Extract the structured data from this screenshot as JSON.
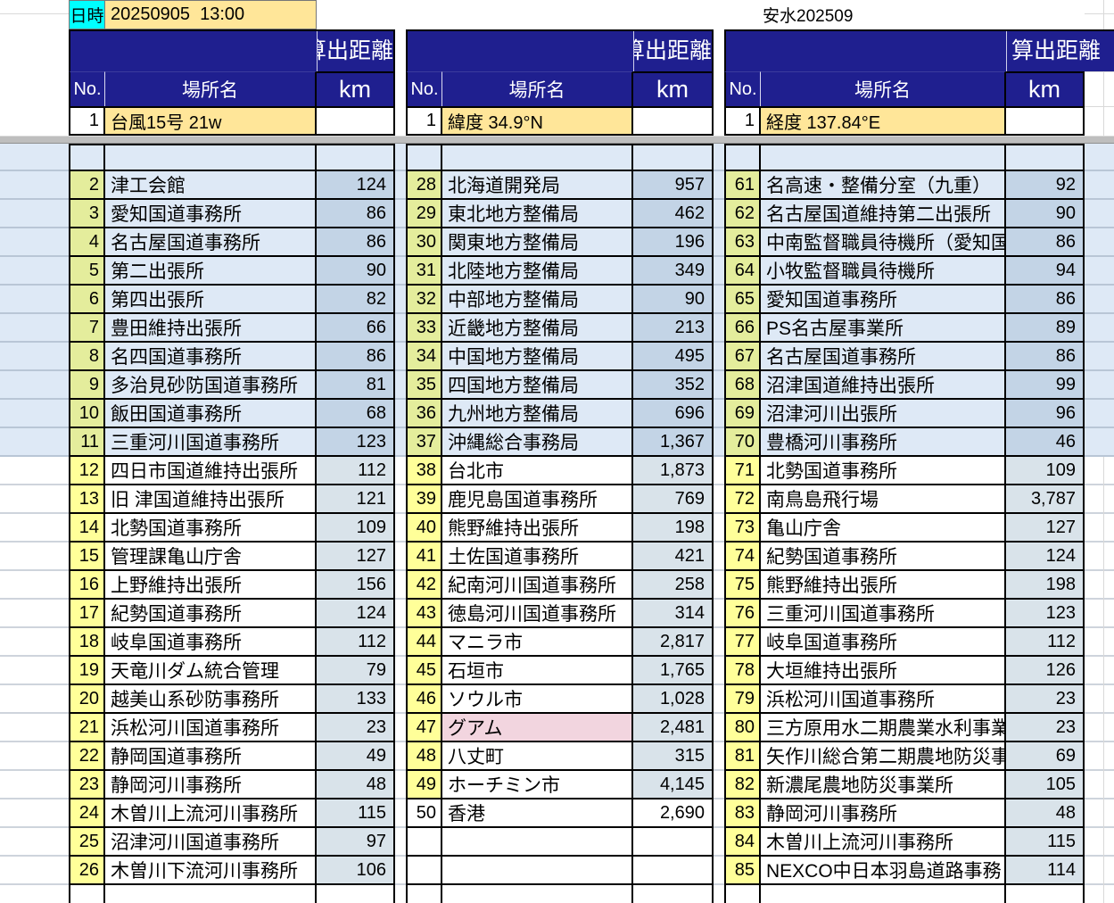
{
  "meta": {
    "datetime_label": "日時",
    "datetime_value": "20250905  13:00",
    "doc_ref": "安水202509"
  },
  "header": {
    "distance_title": "算出距離",
    "no_label": "No.",
    "place_label": "場所名",
    "unit_label": "km"
  },
  "groups": [
    {
      "pinned_row": {
        "no": "1",
        "name": "台風15号 21w"
      },
      "rows": [
        {
          "no": "2",
          "name": "津工会館",
          "km": "124"
        },
        {
          "no": "3",
          "name": "愛知国道事務所",
          "km": "86"
        },
        {
          "no": "4",
          "name": "名古屋国道事務所",
          "km": "86"
        },
        {
          "no": "5",
          "name": "第二出張所",
          "km": "90"
        },
        {
          "no": "6",
          "name": "第四出張所",
          "km": "82"
        },
        {
          "no": "7",
          "name": "豊田維持出張所",
          "km": "66"
        },
        {
          "no": "8",
          "name": "名四国道事務所",
          "km": "86"
        },
        {
          "no": "9",
          "name": "多治見砂防国道事務所",
          "km": "81"
        },
        {
          "no": "10",
          "name": "飯田国道事務所",
          "km": "68"
        },
        {
          "no": "11",
          "name": "三重河川国道事務所",
          "km": "123"
        },
        {
          "no": "12",
          "name": "四日市国道維持出張所",
          "km": "112"
        },
        {
          "no": "13",
          "name": "旧 津国道維持出張所",
          "km": "121"
        },
        {
          "no": "14",
          "name": "北勢国道事務所",
          "km": "109"
        },
        {
          "no": "15",
          "name": "管理課亀山庁舎",
          "km": "127"
        },
        {
          "no": "16",
          "name": "上野維持出張所",
          "km": "156"
        },
        {
          "no": "17",
          "name": "紀勢国道事務所",
          "km": "124"
        },
        {
          "no": "18",
          "name": "岐阜国道事務所",
          "km": "112"
        },
        {
          "no": "19",
          "name": "天竜川ダム統合管理",
          "km": "79"
        },
        {
          "no": "20",
          "name": "越美山系砂防事務所",
          "km": "133"
        },
        {
          "no": "21",
          "name": "浜松河川国道事務所",
          "km": "23"
        },
        {
          "no": "22",
          "name": "静岡国道事務所",
          "km": "49"
        },
        {
          "no": "23",
          "name": "静岡河川事務所",
          "km": "48"
        },
        {
          "no": "24",
          "name": "木曽川上流河川事務所",
          "km": "115"
        },
        {
          "no": "25",
          "name": "沼津河川国道事務所",
          "km": "97"
        },
        {
          "no": "26",
          "name": "木曽川下流河川事務所",
          "km": "106"
        }
      ]
    },
    {
      "pinned_row": {
        "no": "1",
        "name": "緯度 34.9°N"
      },
      "rows": [
        {
          "no": "28",
          "name": "北海道開発局",
          "km": "957"
        },
        {
          "no": "29",
          "name": "東北地方整備局",
          "km": "462"
        },
        {
          "no": "30",
          "name": "関東地方整備局",
          "km": "196"
        },
        {
          "no": "31",
          "name": "北陸地方整備局",
          "km": "349"
        },
        {
          "no": "32",
          "name": "中部地方整備局",
          "km": "90"
        },
        {
          "no": "33",
          "name": "近畿地方整備局",
          "km": "213"
        },
        {
          "no": "34",
          "name": "中国地方整備局",
          "km": "495"
        },
        {
          "no": "35",
          "name": "四国地方整備局",
          "km": "352"
        },
        {
          "no": "36",
          "name": "九州地方整備局",
          "km": "696"
        },
        {
          "no": "37",
          "name": "沖縄総合事務局",
          "km": "1,367"
        },
        {
          "no": "38",
          "name": "台北市",
          "km": "1,873"
        },
        {
          "no": "39",
          "name": "鹿児島国道事務所",
          "km": "769"
        },
        {
          "no": "40",
          "name": "熊野維持出張所",
          "km": "198"
        },
        {
          "no": "41",
          "name": "土佐国道事務所",
          "km": "421"
        },
        {
          "no": "42",
          "name": "紀南河川国道事務所",
          "km": "258"
        },
        {
          "no": "43",
          "name": "徳島河川国道事務所",
          "km": "314"
        },
        {
          "no": "44",
          "name": "マニラ市",
          "km": "2,817"
        },
        {
          "no": "45",
          "name": "石垣市",
          "km": "1,765"
        },
        {
          "no": "46",
          "name": "ソウル市",
          "km": "1,028"
        },
        {
          "no": "47",
          "name": "グアム",
          "km": "2,481",
          "name_bg": "pink"
        },
        {
          "no": "48",
          "name": "八丈町",
          "km": "315"
        },
        {
          "no": "49",
          "name": "ホーチミン市",
          "km": "4,145"
        },
        {
          "no": "50",
          "name": "香港",
          "km": "2,690",
          "no_bg": "plain",
          "km_bg": "plain"
        }
      ]
    },
    {
      "pinned_row": {
        "no": "1",
        "name": "経度 137.84°E"
      },
      "rows": [
        {
          "no": "61",
          "name": "名高速・整備分室（九重）",
          "km": "92"
        },
        {
          "no": "62",
          "name": "名古屋国道維持第二出張所",
          "km": "90"
        },
        {
          "no": "63",
          "name": "中南監督職員待機所（愛知国",
          "km": "86"
        },
        {
          "no": "64",
          "name": "小牧監督職員待機所",
          "km": "94"
        },
        {
          "no": "65",
          "name": "愛知国道事務所",
          "km": "86"
        },
        {
          "no": "66",
          "name": "PS名古屋事業所",
          "km": "89"
        },
        {
          "no": "67",
          "name": "名古屋国道事務所",
          "km": "86"
        },
        {
          "no": "68",
          "name": "沼津国道維持出張所",
          "km": "99"
        },
        {
          "no": "69",
          "name": "沼津河川出張所",
          "km": "96"
        },
        {
          "no": "70",
          "name": "豊橋河川事務所",
          "km": "46"
        },
        {
          "no": "71",
          "name": "北勢国道事務所",
          "km": "109"
        },
        {
          "no": "72",
          "name": "南鳥島飛行場",
          "km": "3,787"
        },
        {
          "no": "73",
          "name": "亀山庁舎",
          "km": "127"
        },
        {
          "no": "74",
          "name": "紀勢国道事務所",
          "km": "124"
        },
        {
          "no": "75",
          "name": "熊野維持出張所",
          "km": "198"
        },
        {
          "no": "76",
          "name": "三重河川国道事務所",
          "km": "123"
        },
        {
          "no": "77",
          "name": "岐阜国道事務所",
          "km": "112"
        },
        {
          "no": "78",
          "name": "大垣維持出張所",
          "km": "126"
        },
        {
          "no": "79",
          "name": "浜松河川国道事務所",
          "km": "23"
        },
        {
          "no": "80",
          "name": "三方原用水二期農業水利事業",
          "km": "23"
        },
        {
          "no": "81",
          "name": "矢作川総合第二期農地防災事",
          "km": "69"
        },
        {
          "no": "82",
          "name": "新濃尾農地防災事業所",
          "km": "105"
        },
        {
          "no": "83",
          "name": "静岡河川事務所",
          "km": "48"
        },
        {
          "no": "84",
          "name": "木曽川上流河川事務所",
          "km": "115"
        },
        {
          "no": "85",
          "name": "NEXCO中日本羽島道路事務",
          "km": "114"
        }
      ]
    }
  ],
  "colors": {
    "navy": "#1F1F8F",
    "cyan": "#00FFFF",
    "tan": "#FFE699",
    "yellow": "#FFFF99",
    "lime": "#E4ED9C",
    "bandblue": "#DEE9F6",
    "kmblue": "#C3D4E6",
    "kmgray": "#D9E3EA",
    "pink": "#F2D5DF"
  }
}
